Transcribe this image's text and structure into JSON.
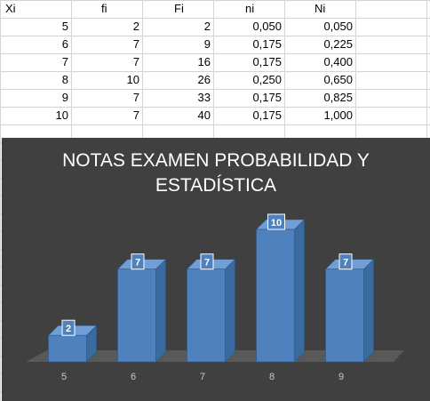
{
  "table": {
    "headers": [
      "Xi",
      "fi",
      "Fi",
      "ni",
      "Ni"
    ],
    "rows": [
      [
        "5",
        "2",
        "2",
        "0,050",
        "0,050"
      ],
      [
        "6",
        "7",
        "9",
        "0,175",
        "0,225"
      ],
      [
        "7",
        "7",
        "16",
        "0,175",
        "0,400"
      ],
      [
        "8",
        "10",
        "26",
        "0,250",
        "0,650"
      ],
      [
        "9",
        "7",
        "33",
        "0,175",
        "0,825"
      ],
      [
        "10",
        "7",
        "40",
        "0,175",
        "1,000"
      ]
    ]
  },
  "chart_data": {
    "type": "bar",
    "title_line1": "NOTAS EXAMEN PROBABILIDAD Y",
    "title_line2": "ESTADÍSTICA",
    "categories": [
      "5",
      "6",
      "7",
      "8",
      "9"
    ],
    "values": [
      2,
      7,
      7,
      10,
      7
    ],
    "data_labels": [
      "2",
      "7",
      "7",
      "10",
      "7"
    ],
    "ylim": [
      0,
      10
    ],
    "grid": false,
    "style": "3d",
    "colors": {
      "background": "#404040",
      "bar_front": "#4f81bd",
      "bar_side": "#3a6a9e",
      "bar_top": "#6f9fd6",
      "floor": "#595959",
      "label_bg": "#4f81bd",
      "text": "#ffffff",
      "tick_text": "#c8c8c8"
    }
  }
}
